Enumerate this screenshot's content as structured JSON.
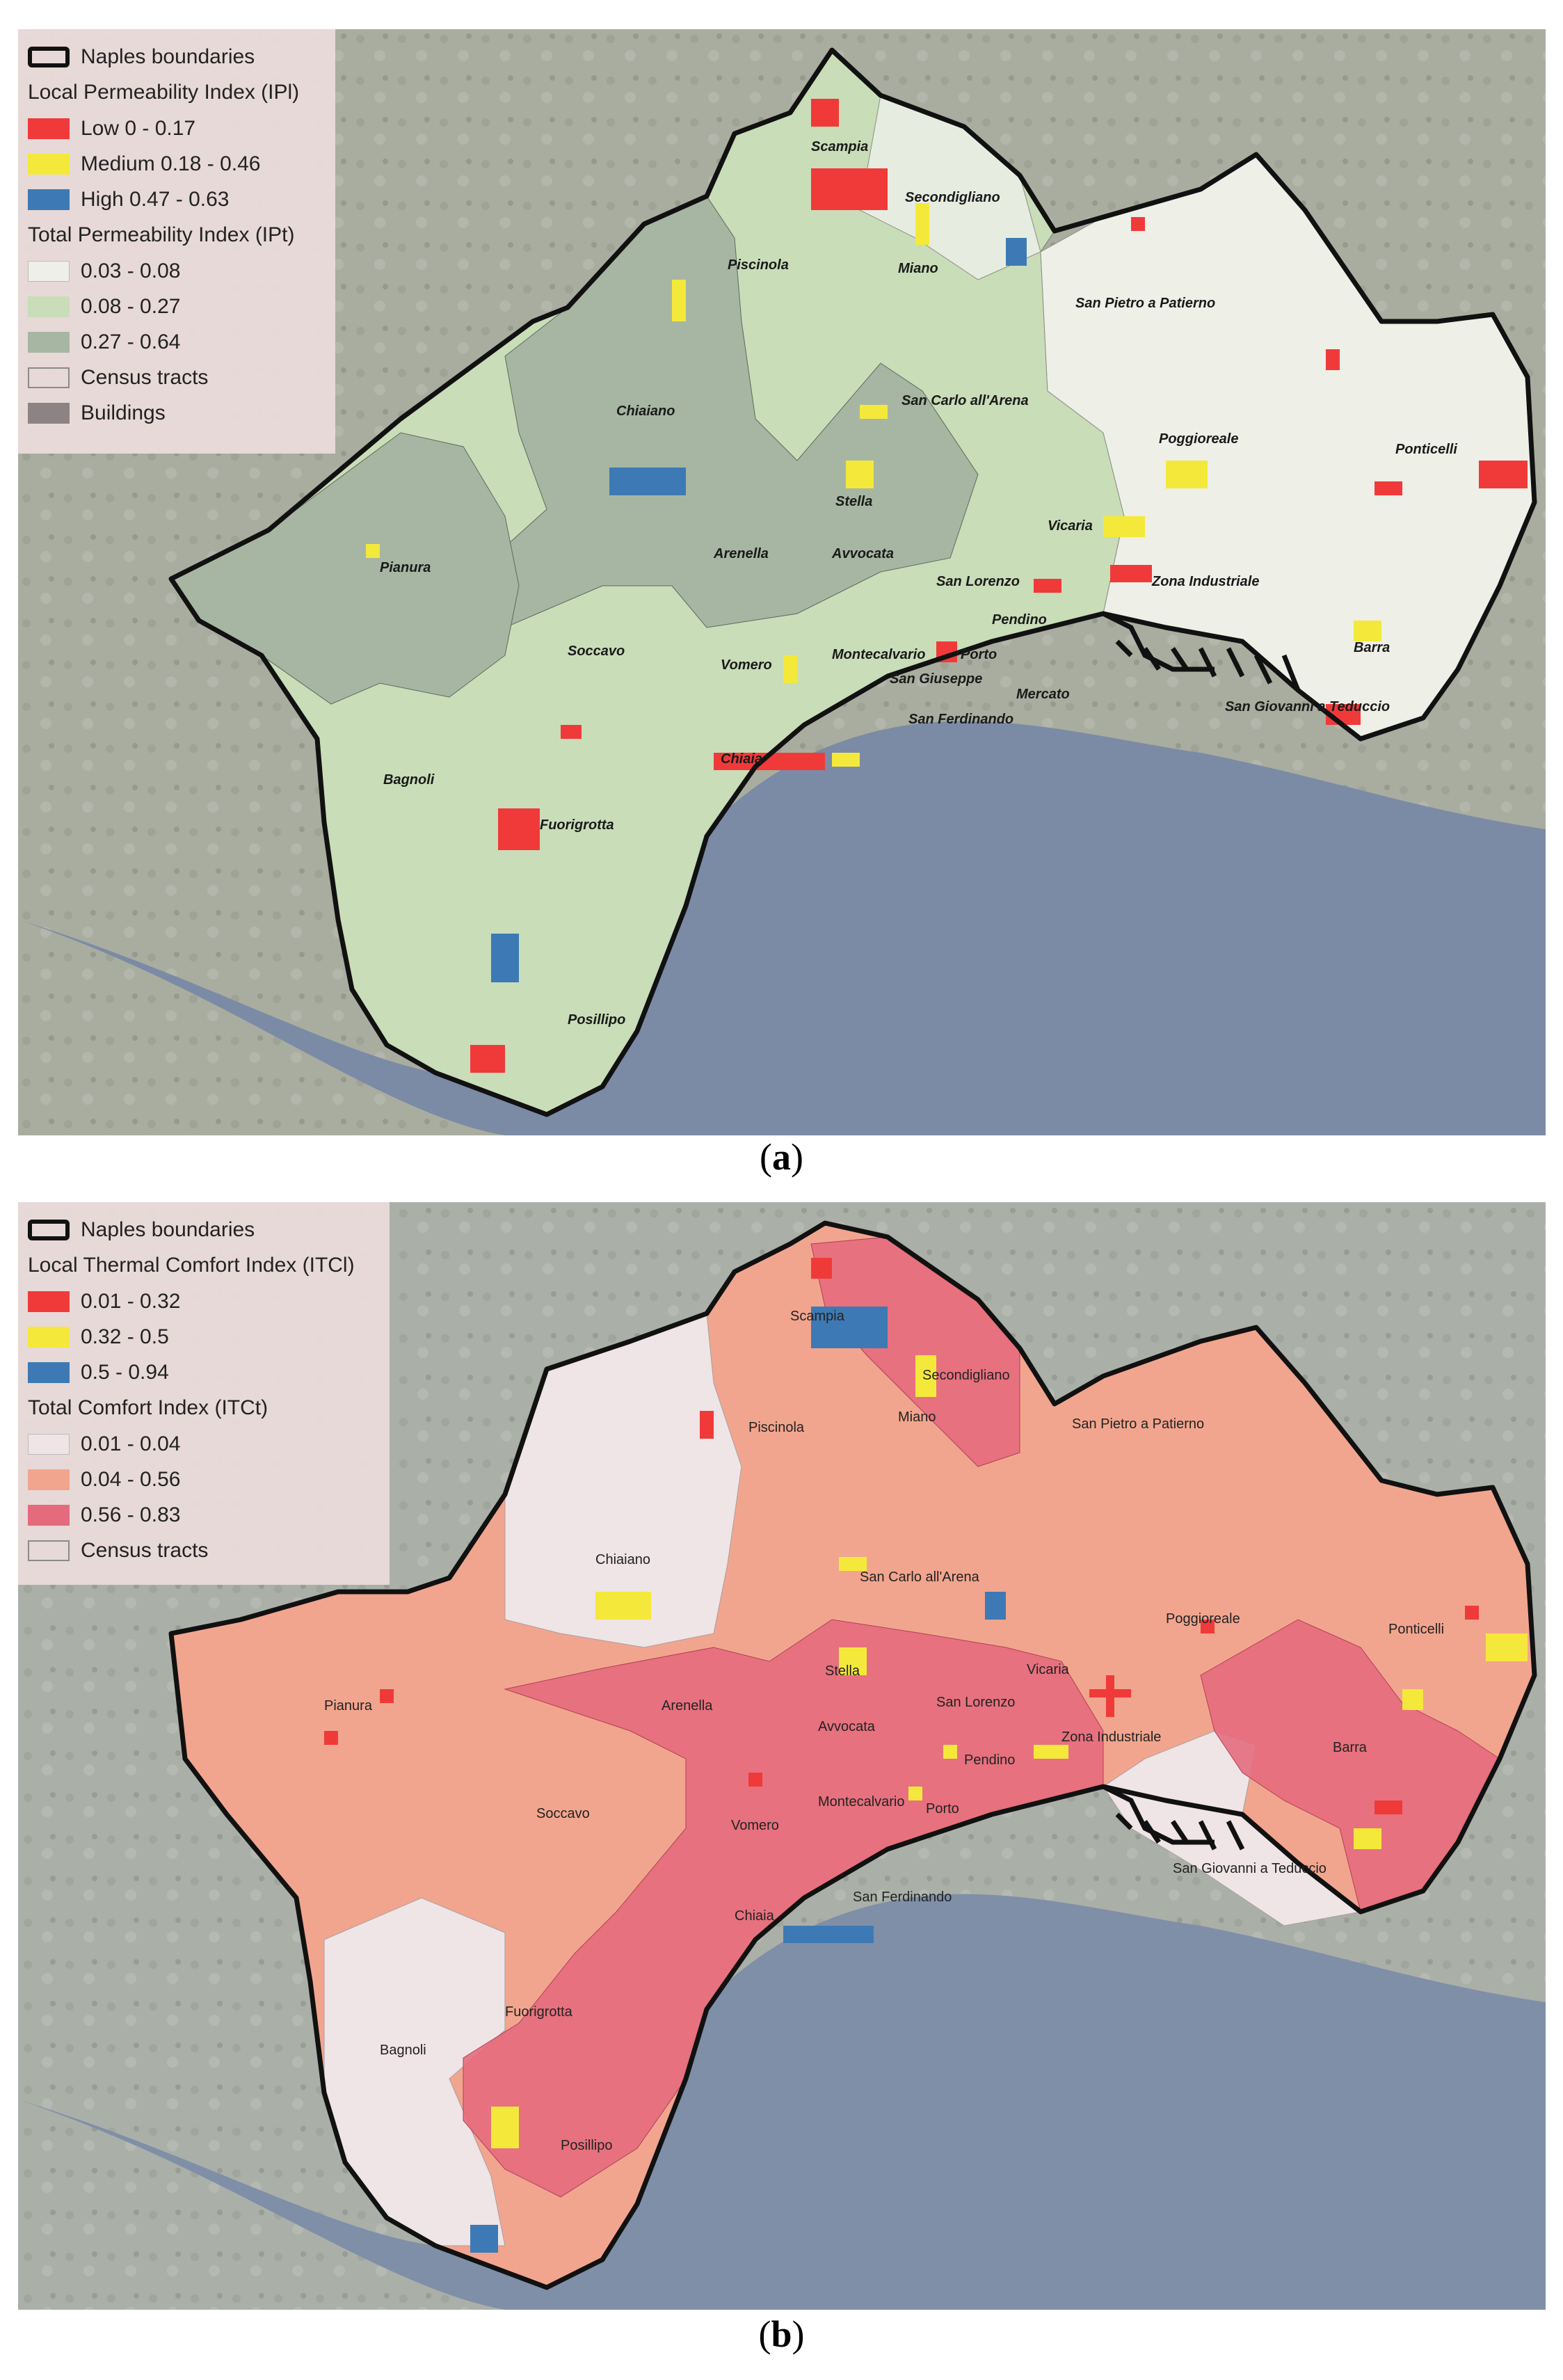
{
  "panels": {
    "a": {
      "caption_letter": "a",
      "legend": {
        "boundary_label": "Naples boundaries",
        "local_title": "Local Permeability Index (IPl)",
        "local_classes": [
          {
            "label": "Low 0 - 0.17",
            "color": "#f03a3a"
          },
          {
            "label": "Medium 0.18 - 0.46",
            "color": "#f4e93a"
          },
          {
            "label": "High 0.47 - 0.63",
            "color": "#3d7ab5"
          }
        ],
        "total_title": "Total Permeability Index (IPt)",
        "total_classes": [
          {
            "label": "0.03 - 0.08",
            "color": "#eeefe7"
          },
          {
            "label": "0.08 - 0.27",
            "color": "#c9ddb8"
          },
          {
            "label": "0.27 - 0.64",
            "color": "#a7b6a2"
          }
        ],
        "tracts_label": "Census tracts",
        "buildings_label": "Buildings",
        "buildings_color": "#8d8385"
      },
      "places": [
        "Scampia",
        "Secondigliano",
        "Piscinola",
        "Miano",
        "San Pietro a Patierno",
        "Chiaiano",
        "San Carlo all'Arena",
        "Poggioreale",
        "Ponticelli",
        "Pianura",
        "Stella",
        "Arenella",
        "Avvocata",
        "Vicaria",
        "San Lorenzo",
        "Zona Industriale",
        "Pendino",
        "Soccavo",
        "Vomero",
        "Montecalvario",
        "Porto",
        "San Giuseppe",
        "Mercato",
        "Barra",
        "San Giovanni a Teduccio",
        "San Ferdinando",
        "Chiaia",
        "Bagnoli",
        "Fuorigrotta",
        "Posillipo"
      ]
    },
    "b": {
      "caption_letter": "b",
      "legend": {
        "boundary_label": "Naples boundaries",
        "local_title": "Local Thermal Comfort Index (ITCl)",
        "local_classes": [
          {
            "label": "0.01 - 0.32",
            "color": "#f03a3a"
          },
          {
            "label": "0.32 - 0.5",
            "color": "#f4e93a"
          },
          {
            "label": "0.5 - 0.94",
            "color": "#3d7ab5"
          }
        ],
        "total_title": "Total Comfort Index (ITCt)",
        "total_classes": [
          {
            "label": "0.01 - 0.04",
            "color": "#efe4e6"
          },
          {
            "label": "0.04 - 0.56",
            "color": "#f2a58e"
          },
          {
            "label": "0.56 - 0.83",
            "color": "#e56a7c"
          }
        ],
        "tracts_label": "Census tracts"
      },
      "places": [
        "Scampia",
        "Secondigliano",
        "Piscinola",
        "Miano",
        "San Pietro a Patierno",
        "Chiaiano",
        "San Carlo all'Arena",
        "Poggioreale",
        "Ponticelli",
        "Stella",
        "Vicaria",
        "Pianura",
        "Arenella",
        "San Lorenzo",
        "Avvocata",
        "Zona Industriale",
        "Pendino",
        "Barra",
        "Soccavo",
        "Montecalvario",
        "Porto",
        "Vomero",
        "San Giovanni a Teduccio",
        "Chiaia",
        "San Ferdinando",
        "Fuorigrotta",
        "Bagnoli",
        "Posillipo"
      ]
    }
  },
  "colors": {
    "boundary": "#111111",
    "sea": "#7b8ba6",
    "land_background": "#a8aca0"
  }
}
